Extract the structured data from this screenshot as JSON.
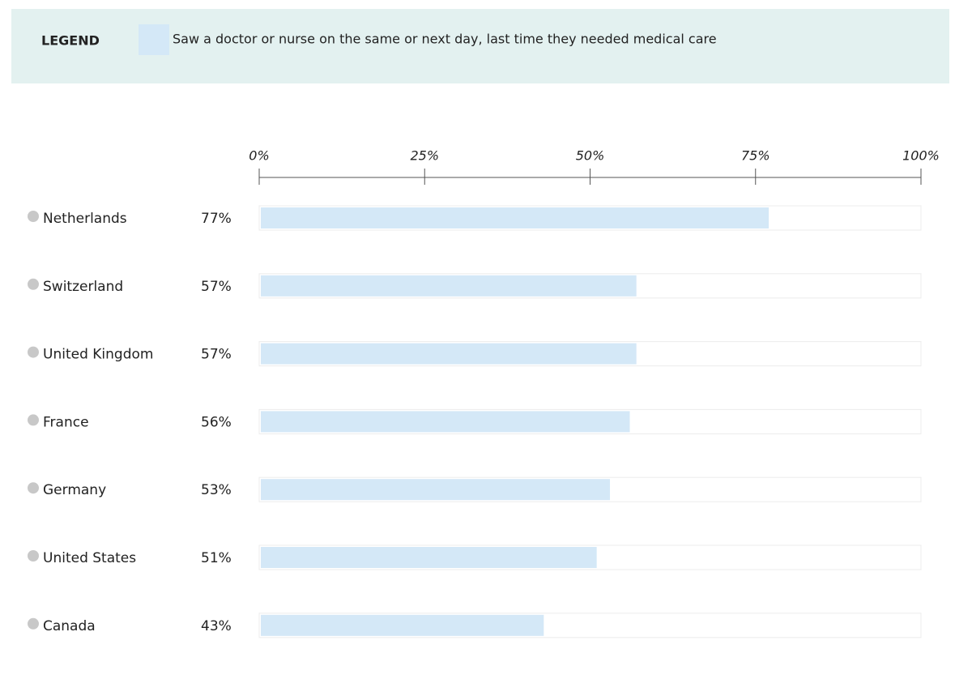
{
  "chart_data": {
    "type": "bar",
    "orientation": "horizontal",
    "legend_title": "LEGEND",
    "categories": [
      "Netherlands",
      "Switzerland",
      "United Kingdom",
      "France",
      "Germany",
      "United States",
      "Canada"
    ],
    "series": [
      {
        "name": "Saw a doctor or nurse on the same or next day, last time they needed medical care",
        "color": "#d4e8f7",
        "values": [
          77,
          57,
          57,
          56,
          53,
          51,
          43
        ],
        "value_labels": [
          "77%",
          "57%",
          "57%",
          "56%",
          "53%",
          "51%",
          "43%"
        ]
      }
    ],
    "xlim": [
      0,
      100
    ],
    "xticks": [
      {
        "value": 0,
        "label": "0%"
      },
      {
        "value": 25,
        "label": "25%"
      },
      {
        "value": 50,
        "label": "50%"
      },
      {
        "value": 75,
        "label": "75%"
      },
      {
        "value": 100,
        "label": "100%"
      }
    ]
  }
}
